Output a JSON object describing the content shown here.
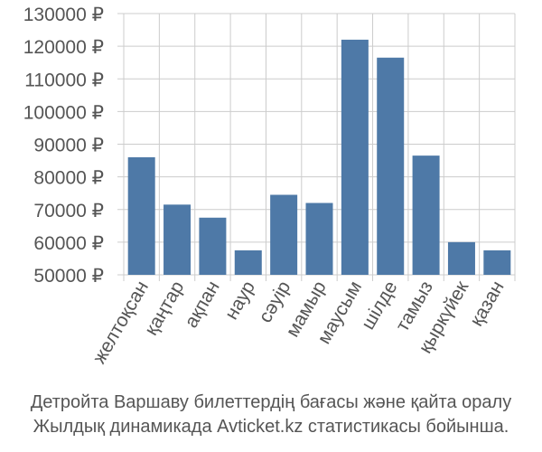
{
  "chart_data": {
    "type": "bar",
    "categories": [
      "желтоқсан",
      "қаңтар",
      "ақпан",
      "наур",
      "сәуір",
      "мамыр",
      "маусым",
      "шілде",
      "тамыз",
      "қыркүйек",
      "қазан"
    ],
    "values": [
      86000,
      71500,
      67500,
      57500,
      74500,
      72000,
      122000,
      116500,
      86500,
      60000,
      57500
    ],
    "ylim": [
      50000,
      130000
    ],
    "yticks": [
      50000,
      60000,
      70000,
      80000,
      90000,
      100000,
      110000,
      120000,
      130000
    ],
    "currency_suffix": " ₽",
    "bar_color": "#4e79a7",
    "grid_color": "#cccccc",
    "grid": true
  },
  "caption": {
    "line1": "Детройта Варшаву билеттердің бағасы және қайта оралу",
    "line2": "Жылдық динамикада Avticket.kz статистикасы бойынша."
  }
}
